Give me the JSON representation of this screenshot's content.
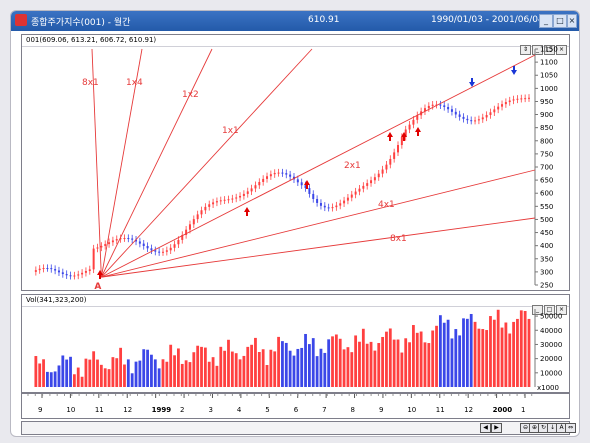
{
  "title": {
    "app": "종합주가지수(001) - 월간",
    "value": "610.91",
    "date_range": "1990/01/03 - 2001/06/04"
  },
  "price_panel": {
    "header": "001(609.06, 613.21, 606.72, 610.91)",
    "y_ticks": [
      "1150",
      "1100",
      "1050",
      "1000",
      "950",
      "900",
      "850",
      "800",
      "750",
      "700",
      "650",
      "600",
      "550",
      "500",
      "450",
      "400",
      "350",
      "300",
      "250"
    ],
    "fan_labels": [
      "8x1",
      "1x4",
      "1x2",
      "1x1",
      "2x1",
      "4x1",
      "8x1"
    ],
    "pivot_label": "A"
  },
  "volume_panel": {
    "header": "Vol(341,323,200)",
    "y_ticks": [
      "50000",
      "40000",
      "30000",
      "20000",
      "10000"
    ],
    "unit": "x1000"
  },
  "x_axis": {
    "labels": [
      "9",
      "10",
      "11",
      "12",
      "1999",
      "2",
      "3",
      "4",
      "5",
      "6",
      "7",
      "8",
      "9",
      "10",
      "11",
      "12",
      "2000",
      "1"
    ]
  },
  "scroll": {
    "buttons": [
      "◀",
      "▶",
      "⊖",
      "⊕",
      "↻",
      "↓",
      "A",
      "⇔"
    ]
  },
  "colors": {
    "up": "#ff4040",
    "down": "#3b47e8",
    "fan": "#e63a3a",
    "arrow_up": "#e00000",
    "arrow_down": "#1a36d6"
  }
}
